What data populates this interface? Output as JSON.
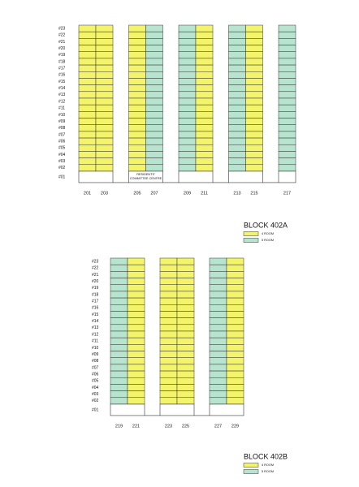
{
  "floors": [
    "#23",
    "#22",
    "#21",
    "#20",
    "#19",
    "#18",
    "#17",
    "#16",
    "#15",
    "#14",
    "#13",
    "#12",
    "#11",
    "#10",
    "#09",
    "#08",
    "#07",
    "#06",
    "#05",
    "#04",
    "#03",
    "#02",
    "#01"
  ],
  "legend": [
    {
      "label": "4 ROOM",
      "color": "#f4f46a"
    },
    {
      "label": "5 ROOM",
      "color": "#b7e4cf"
    }
  ],
  "blocks": [
    {
      "title": "BLOCK 402A",
      "groups": [
        {
          "units": [
            {
              "label": "201",
              "color": "#f4f46a"
            },
            {
              "label": "203",
              "color": "#f4f46a"
            }
          ]
        },
        {
          "units": [
            {
              "label": "205",
              "color": "#f4f46a"
            },
            {
              "label": "207",
              "color": "#b7e4cf"
            }
          ],
          "note": [
            "RESIDENTS'",
            "COMMITTEE CENTRE"
          ]
        },
        {
          "units": [
            {
              "label": "209",
              "color": "#b7e4cf"
            },
            {
              "label": "211",
              "color": "#f4f46a"
            }
          ]
        },
        {
          "units": [
            {
              "label": "213",
              "color": "#b7e4cf"
            },
            {
              "label": "215",
              "color": "#f4f46a"
            }
          ]
        },
        {
          "units": [
            {
              "label": "217",
              "color": "#b7e4cf"
            }
          ]
        }
      ]
    },
    {
      "title": "BLOCK 402B",
      "groups": [
        {
          "units": [
            {
              "label": "219",
              "color": "#b7e4cf"
            },
            {
              "label": "221",
              "color": "#f4f46a"
            }
          ]
        },
        {
          "units": [
            {
              "label": "223",
              "color": "#f4f46a"
            },
            {
              "label": "225",
              "color": "#f4f46a"
            }
          ]
        },
        {
          "units": [
            {
              "label": "227",
              "color": "#b7e4cf"
            },
            {
              "label": "229",
              "color": "#f4f46a"
            }
          ]
        }
      ]
    }
  ]
}
